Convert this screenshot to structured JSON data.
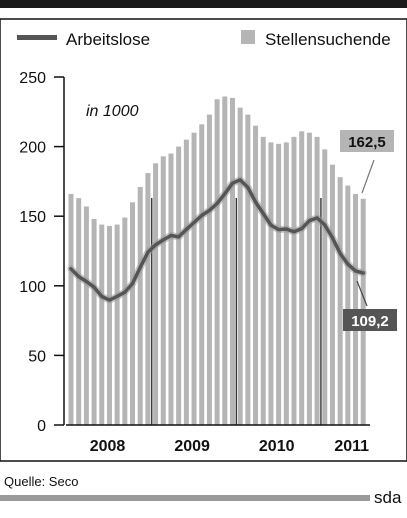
{
  "chart_data": {
    "type": "bar",
    "series": [
      {
        "name": "Arbeitslose",
        "kind": "line",
        "color": "#555555",
        "values": [
          112.2,
          106.6,
          103.1,
          99,
          92.3,
          89.7,
          92.4,
          95.4,
          101.6,
          113.2,
          124.1,
          129.4,
          133,
          136.1,
          135.1,
          140.5,
          145.5,
          150.5,
          154.2,
          159.1,
          166.1,
          173.7,
          176.1,
          170.6,
          160.1,
          151.9,
          143.6,
          140.4,
          140.8,
          138.8,
          141.1,
          146.8,
          148.8,
          143.7,
          134.4,
          123.2,
          115.6,
          110.7,
          109.2
        ]
      },
      {
        "name": "Stellensuchende",
        "kind": "bar",
        "color": "#b5b5b5",
        "values": [
          166,
          163,
          157,
          148,
          144,
          143,
          144,
          149,
          160,
          171,
          181,
          188,
          193,
          195,
          200,
          205,
          210,
          216,
          223,
          234,
          236,
          235,
          228,
          223,
          215,
          207,
          203,
          202,
          203,
          207,
          211,
          210,
          207,
          198,
          187,
          178,
          172,
          166,
          162.5
        ]
      }
    ],
    "unit_label": "in 1000",
    "ylim": [
      0,
      250
    ],
    "yticks": [
      "250",
      "200",
      "150",
      "100",
      "50",
      "0"
    ],
    "year_labels": [
      "2008",
      "2009",
      "2010",
      "2011"
    ],
    "end_labels": {
      "stellensuchende": "162,5",
      "arbeitslose": "109,2"
    },
    "legend_position": "top",
    "grid": false,
    "source": "Quelle: Seco",
    "logo": "sda"
  }
}
